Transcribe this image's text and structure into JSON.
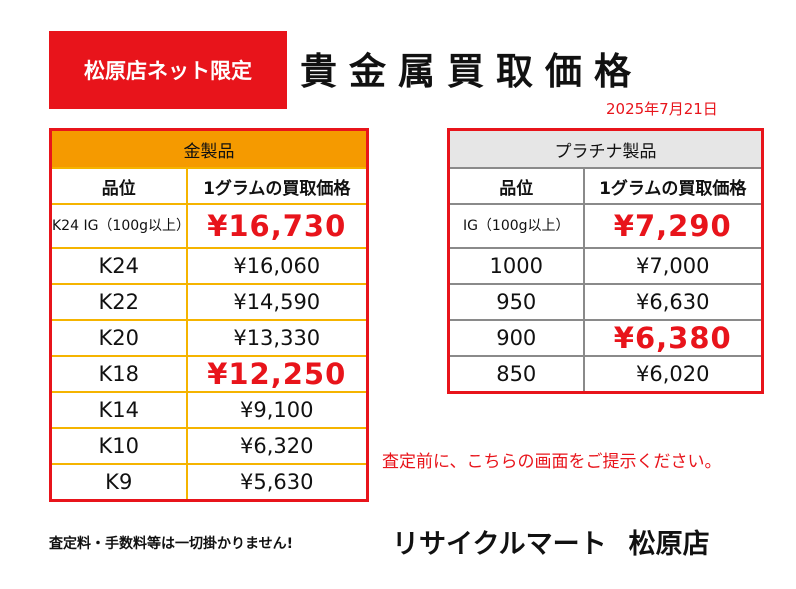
{
  "header": {
    "badge": "松原店ネット限定",
    "title": "貴金属買取価格",
    "date": "2025年7月21日"
  },
  "gold": {
    "category": "金製品",
    "col_grade": "品位",
    "col_price": "1グラムの買取価格",
    "rows": [
      {
        "grade": "K24 IG（100g以上）",
        "price": "¥16,730",
        "highlight": true
      },
      {
        "grade": "K24",
        "price": "¥16,060",
        "highlight": false
      },
      {
        "grade": "K22",
        "price": "¥14,590",
        "highlight": false
      },
      {
        "grade": "K20",
        "price": "¥13,330",
        "highlight": false
      },
      {
        "grade": "K18",
        "price": "¥12,250",
        "highlight": true
      },
      {
        "grade": "K14",
        "price": "¥9,100",
        "highlight": false
      },
      {
        "grade": "K10",
        "price": "¥6,320",
        "highlight": false
      },
      {
        "grade": "K9",
        "price": "¥5,630",
        "highlight": false
      }
    ]
  },
  "platinum": {
    "category": "プラチナ製品",
    "col_grade": "品位",
    "col_price": "1グラムの買取価格",
    "rows": [
      {
        "grade": "IG（100g以上）",
        "price": "¥7,290",
        "highlight": true
      },
      {
        "grade": "1000",
        "price": "¥7,000",
        "highlight": false
      },
      {
        "grade": "950",
        "price": "¥6,630",
        "highlight": false
      },
      {
        "grade": "900",
        "price": "¥6,380",
        "highlight": true
      },
      {
        "grade": "850",
        "price": "¥6,020",
        "highlight": false
      }
    ]
  },
  "notice": "査定前に、こちらの画面をご提示ください。",
  "footer": {
    "fee_note": "査定料・手数料等は一切掛かりません!",
    "shop_name": "リサイクルマート",
    "branch": "松原店"
  },
  "colors": {
    "accent_red": "#e8141b",
    "gold_header": "#f59a00",
    "gold_border": "#f5b400",
    "platinum_header": "#e6e6e6",
    "platinum_border": "#8a8a8a"
  }
}
